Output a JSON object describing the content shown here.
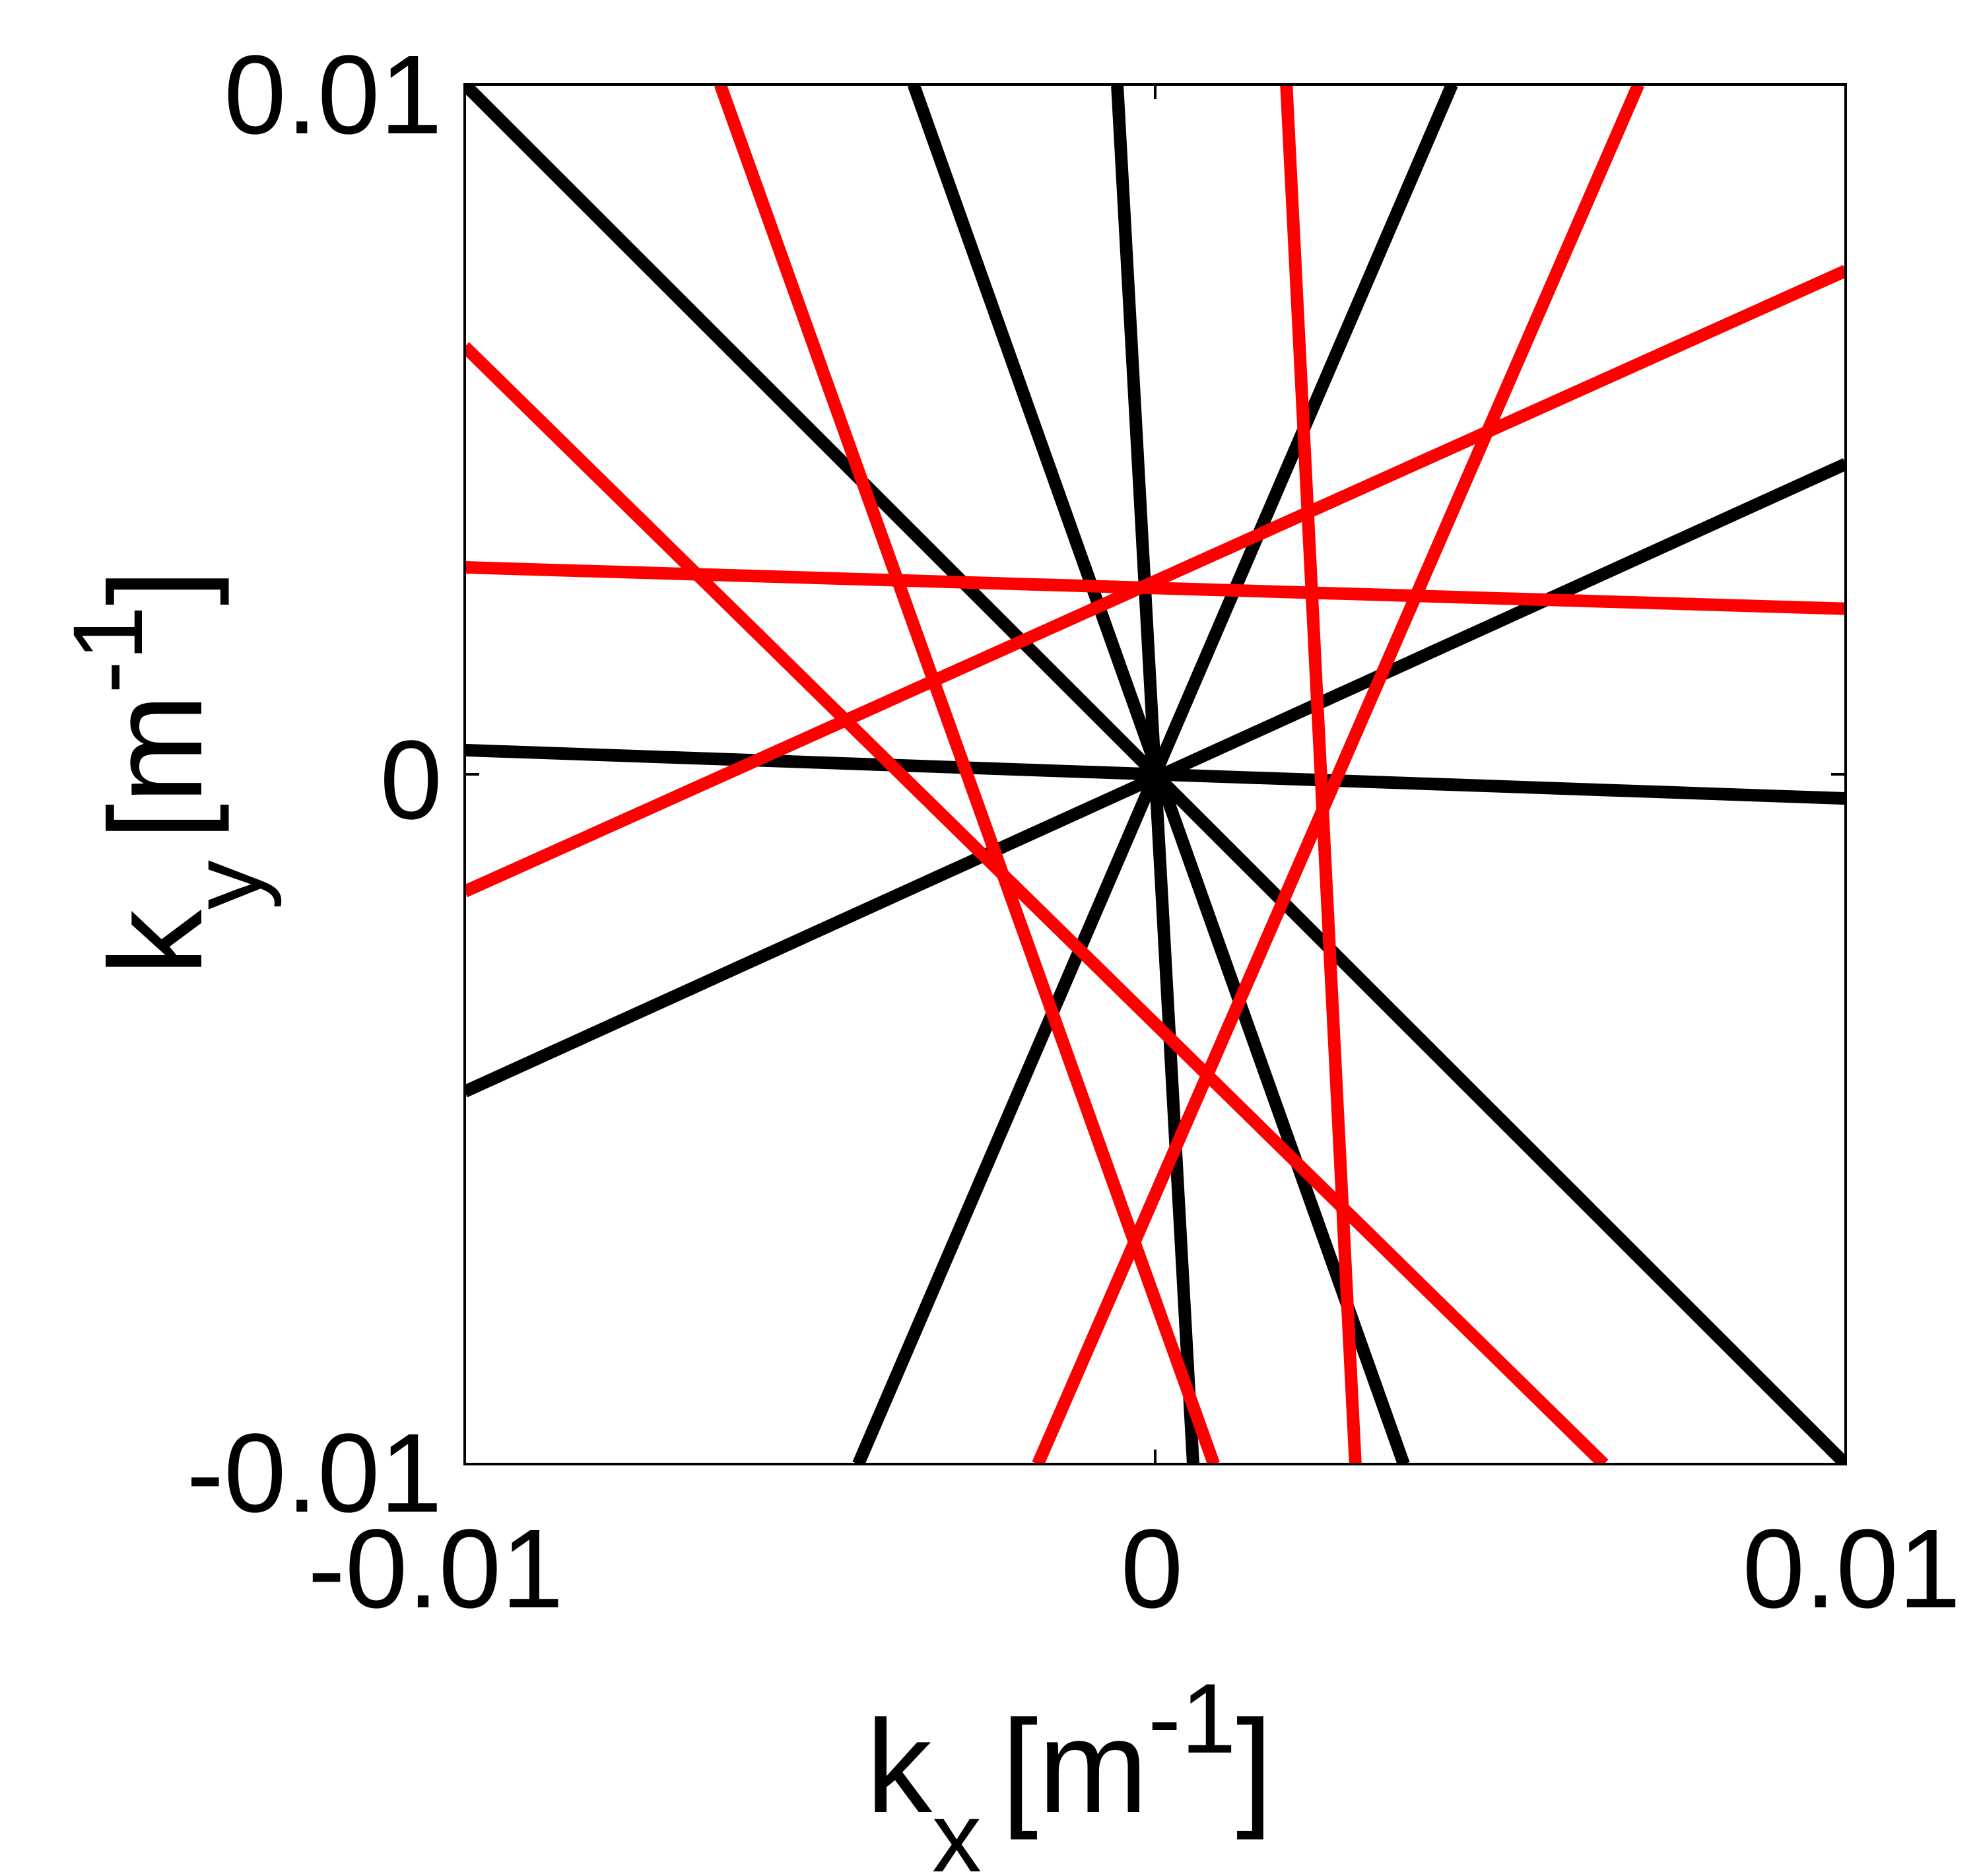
{
  "chart_data": {
    "type": "line",
    "xlim": [
      -0.01,
      0.01
    ],
    "ylim": [
      -0.01,
      0.01
    ],
    "x_ticks": [
      -0.01,
      0,
      0.01
    ],
    "y_ticks": [
      -0.01,
      0,
      0.01
    ],
    "x_tick_labels": [
      "-0.01",
      "0",
      "0.01"
    ],
    "y_tick_labels": [
      "-0.01",
      "0",
      "0.01"
    ],
    "xlabel": {
      "base": "k",
      "sub": "x",
      "unit_open": "[m",
      "sup": "-1",
      "unit_close": "]"
    },
    "ylabel": {
      "base": "k",
      "sub": "y",
      "unit_open": "[m",
      "sup": "-1",
      "unit_close": "]"
    },
    "grid": false,
    "colors": {
      "black_lines": "#000000",
      "red_lines": "#ff0000"
    },
    "series": [
      {
        "color": "#000000",
        "x": [
          -0.01,
          0.01
        ],
        "y": [
          0.01,
          -0.01
        ]
      },
      {
        "color": "#000000",
        "x": [
          -0.0035,
          0.0036
        ],
        "y": [
          0.01,
          -0.01
        ]
      },
      {
        "color": "#000000",
        "x": [
          -0.00055,
          0.00055
        ],
        "y": [
          0.01,
          -0.01
        ]
      },
      {
        "color": "#000000",
        "x": [
          0.0043,
          -0.0043
        ],
        "y": [
          0.01,
          -0.01
        ]
      },
      {
        "color": "#000000",
        "x": [
          -0.01,
          0.01
        ],
        "y": [
          0.00035,
          -0.00035
        ]
      },
      {
        "color": "#000000",
        "x": [
          -0.01,
          0.01
        ],
        "y": [
          -0.0046,
          0.0045
        ]
      },
      {
        "color": "#ff0000",
        "x": [
          -0.0063,
          0.00085
        ],
        "y": [
          0.01,
          -0.01
        ]
      },
      {
        "color": "#ff0000",
        "x": [
          0.0019,
          0.0029
        ],
        "y": [
          0.01,
          -0.01
        ]
      },
      {
        "color": "#ff0000",
        "x": [
          0.007,
          -0.0017
        ],
        "y": [
          0.01,
          -0.01
        ]
      },
      {
        "color": "#ff0000",
        "x": [
          -0.01,
          0.0065
        ],
        "y": [
          0.0062,
          -0.01
        ]
      },
      {
        "color": "#ff0000",
        "x": [
          -0.01,
          0.01
        ],
        "y": [
          0.003,
          0.0024
        ]
      },
      {
        "color": "#ff0000",
        "x": [
          -0.01,
          0.01
        ],
        "y": [
          -0.0017,
          0.0073
        ]
      }
    ]
  }
}
